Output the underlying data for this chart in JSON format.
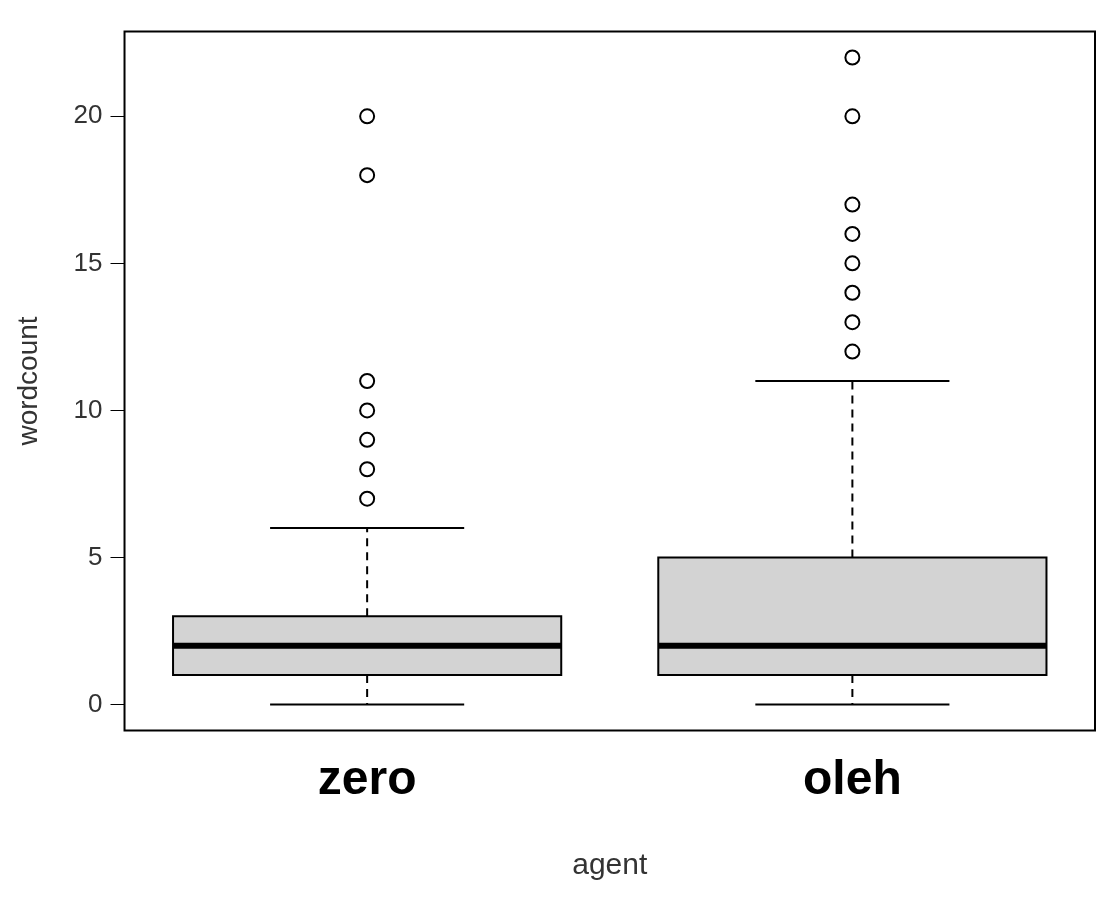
{
  "chart_data": {
    "type": "box",
    "xlabel": "agent",
    "ylabel": "wordcount",
    "categories": [
      "zero",
      "oleh"
    ],
    "boxes": [
      {
        "low": 0,
        "q1": 1,
        "median": 2,
        "q3": 3,
        "high": 6,
        "outliers": [
          7,
          8,
          9,
          10,
          11,
          18,
          20
        ]
      },
      {
        "low": 0,
        "q1": 1,
        "median": 2,
        "q3": 5,
        "high": 11,
        "outliers": [
          12,
          13,
          14,
          15,
          16,
          17,
          20,
          22
        ]
      }
    ],
    "color": "#d3d3d3",
    "ylim": [
      -0.88,
      22.88
    ],
    "yticks": [
      0,
      5,
      10,
      15,
      20
    ],
    "grid": false,
    "legend": false,
    "marker": "circle"
  }
}
